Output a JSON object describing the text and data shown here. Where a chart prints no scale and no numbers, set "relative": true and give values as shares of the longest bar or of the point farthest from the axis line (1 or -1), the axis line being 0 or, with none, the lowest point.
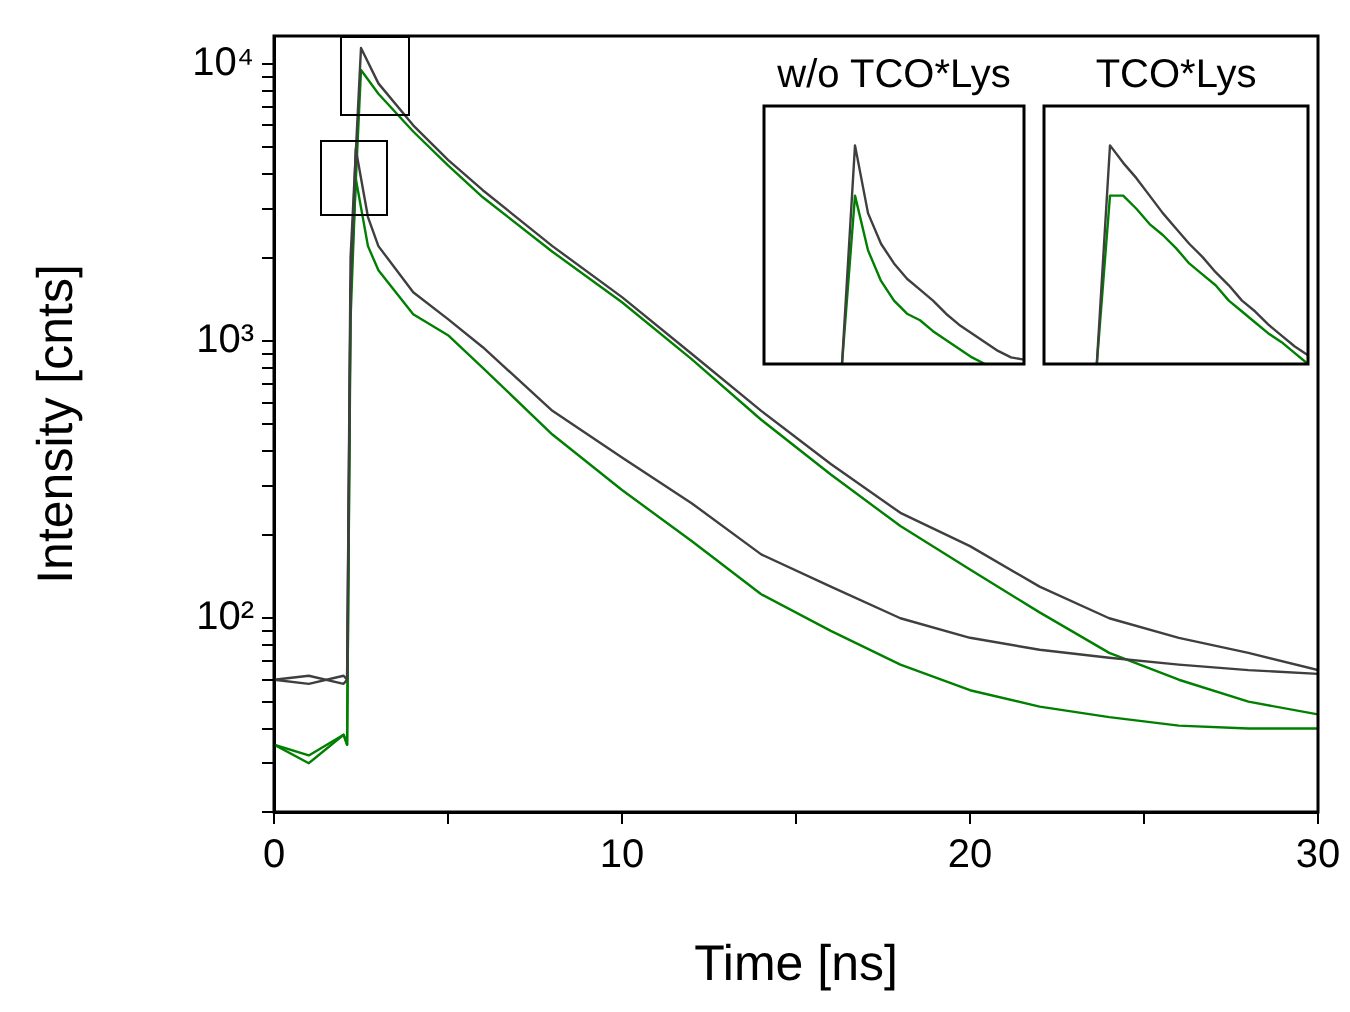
{
  "chart_data": [
    {
      "type": "line",
      "xlabel": "Time [ns]",
      "ylabel": "Intensity [cnts]",
      "log": true,
      "xlim": [
        0,
        30
      ],
      "xticks": [
        0,
        {
          "value": 5,
          "label": null
        },
        10,
        {
          "value": 15,
          "label": null
        },
        20,
        {
          "value": 25,
          "label": null
        },
        30
      ],
      "ylim": [
        20,
        12600
      ],
      "yticks": [
        {
          "value": 20,
          "label": null
        },
        {
          "value": 30,
          "label": null
        },
        {
          "value": 40,
          "label": null
        },
        {
          "value": 50,
          "label": null
        },
        {
          "value": 60,
          "label": null
        },
        {
          "value": 70,
          "label": null
        },
        {
          "value": 80,
          "label": null
        },
        {
          "value": 90,
          "label": null
        },
        {
          "value": 100,
          "label": "10²"
        },
        {
          "value": 200,
          "label": null
        },
        {
          "value": 300,
          "label": null
        },
        {
          "value": 400,
          "label": null
        },
        {
          "value": 500,
          "label": null
        },
        {
          "value": 600,
          "label": null
        },
        {
          "value": 700,
          "label": null
        },
        {
          "value": 800,
          "label": null
        },
        {
          "value": 900,
          "label": null
        },
        {
          "value": 1000,
          "label": "10³"
        },
        {
          "value": 2000,
          "label": null
        },
        {
          "value": 3000,
          "label": null
        },
        {
          "value": 4000,
          "label": null
        },
        {
          "value": 5000,
          "label": null
        },
        {
          "value": 6000,
          "label": null
        },
        {
          "value": 7000,
          "label": null
        },
        {
          "value": 8000,
          "label": null
        },
        {
          "value": 9000,
          "label": null
        },
        {
          "value": 10000,
          "label": "10⁴"
        }
      ],
      "grid": false,
      "legend": false,
      "series": [
        {
          "color": "#3f3f3f",
          "x": [
            0,
            1,
            2,
            2.1,
            2.2,
            2.5,
            3,
            4,
            5,
            6,
            8,
            10,
            12,
            14,
            16,
            18,
            20,
            22,
            24,
            26,
            28,
            30
          ],
          "values": [
            60,
            58,
            62,
            60,
            2000,
            11400,
            8500,
            6000,
            4500,
            3500,
            2200,
            1440,
            900,
            560,
            360,
            240,
            182,
            130,
            100,
            85,
            75,
            65
          ]
        },
        {
          "color": "#3f3f3f",
          "x": [
            0,
            1,
            2,
            2.1,
            2.2,
            2.35,
            2.7,
            3,
            4,
            5,
            6,
            8,
            10,
            12,
            14,
            16,
            18,
            20,
            22,
            24,
            26,
            28,
            30
          ],
          "values": [
            60,
            62,
            58,
            60,
            1500,
            4930,
            2800,
            2200,
            1500,
            1200,
            950,
            560,
            380,
            260,
            170,
            130,
            100,
            85,
            77,
            72,
            68,
            65,
            63
          ]
        },
        {
          "color": "#008000",
          "x": [
            0,
            1,
            2,
            2.1,
            2.2,
            2.5,
            3,
            4,
            5,
            6,
            8,
            10,
            12,
            14,
            16,
            18,
            20,
            22,
            24,
            26,
            28,
            30
          ],
          "values": [
            35,
            32,
            38,
            35,
            1500,
            9500,
            7800,
            5700,
            4300,
            3300,
            2100,
            1380,
            860,
            520,
            330,
            215,
            150,
            105,
            75,
            60,
            50,
            45
          ]
        },
        {
          "color": "#008000",
          "x": [
            0,
            1,
            2,
            2.1,
            2.2,
            2.35,
            2.7,
            3,
            4,
            5,
            6,
            8,
            10,
            12,
            14,
            16,
            18,
            20,
            22,
            24,
            26,
            28,
            30
          ],
          "values": [
            35,
            30,
            38,
            35,
            1200,
            3860,
            2200,
            1800,
            1250,
            1050,
            800,
            460,
            290,
            190,
            122,
            90,
            68,
            55,
            48,
            44,
            41,
            40,
            40
          ]
        }
      ]
    },
    {
      "type": "line",
      "title": "w/o TCO*Lys",
      "relative": true,
      "categories": [
        null,
        null,
        null,
        null,
        null,
        null,
        null,
        null,
        null,
        null,
        null,
        null,
        null,
        null,
        null,
        null,
        null,
        null,
        null,
        null,
        null
      ],
      "series": [
        {
          "color": "#3f3f3f",
          "values": [
            null,
            null,
            null,
            null,
            null,
            null,
            0,
            1,
            0.69,
            0.55,
            0.46,
            0.39,
            0.34,
            0.29,
            0.23,
            0.18,
            0.14,
            0.1,
            0.06,
            0.03,
            0.02
          ]
        },
        {
          "color": "#008000",
          "values": [
            null,
            null,
            null,
            null,
            null,
            null,
            0,
            0.77,
            0.52,
            0.38,
            0.29,
            0.23,
            0.2,
            0.15,
            0.11,
            0.07,
            0.03,
            0,
            null,
            null,
            null
          ]
        }
      ]
    },
    {
      "type": "line",
      "title": "TCO*Lys",
      "relative": true,
      "categories": [
        null,
        null,
        null,
        null,
        null,
        null,
        null,
        null,
        null,
        null,
        null,
        null,
        null,
        null,
        null,
        null,
        null,
        null,
        null,
        null,
        null
      ],
      "series": [
        {
          "color": "#3f3f3f",
          "values": [
            null,
            null,
            null,
            null,
            0,
            1,
            0.92,
            0.85,
            0.77,
            0.69,
            0.62,
            0.55,
            0.49,
            0.42,
            0.36,
            0.29,
            0.24,
            0.18,
            0.13,
            0.08,
            0.04
          ]
        },
        {
          "color": "#008000",
          "values": [
            null,
            null,
            null,
            null,
            0,
            0.77,
            0.77,
            0.71,
            0.64,
            0.59,
            0.53,
            0.46,
            0.41,
            0.36,
            0.29,
            0.24,
            0.19,
            0.14,
            0.1,
            0.05,
            0
          ]
        }
      ]
    }
  ]
}
